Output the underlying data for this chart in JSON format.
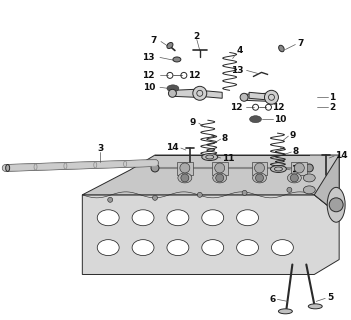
{
  "background_color": "#ffffff",
  "fig_width": 3.51,
  "fig_height": 3.2,
  "dpi": 100,
  "line_color": "#2a2a2a",
  "label_color": "#111111",
  "label_fontsize": 6.5,
  "head_fill": "#e0e0e0",
  "head_edge": "#2a2a2a"
}
